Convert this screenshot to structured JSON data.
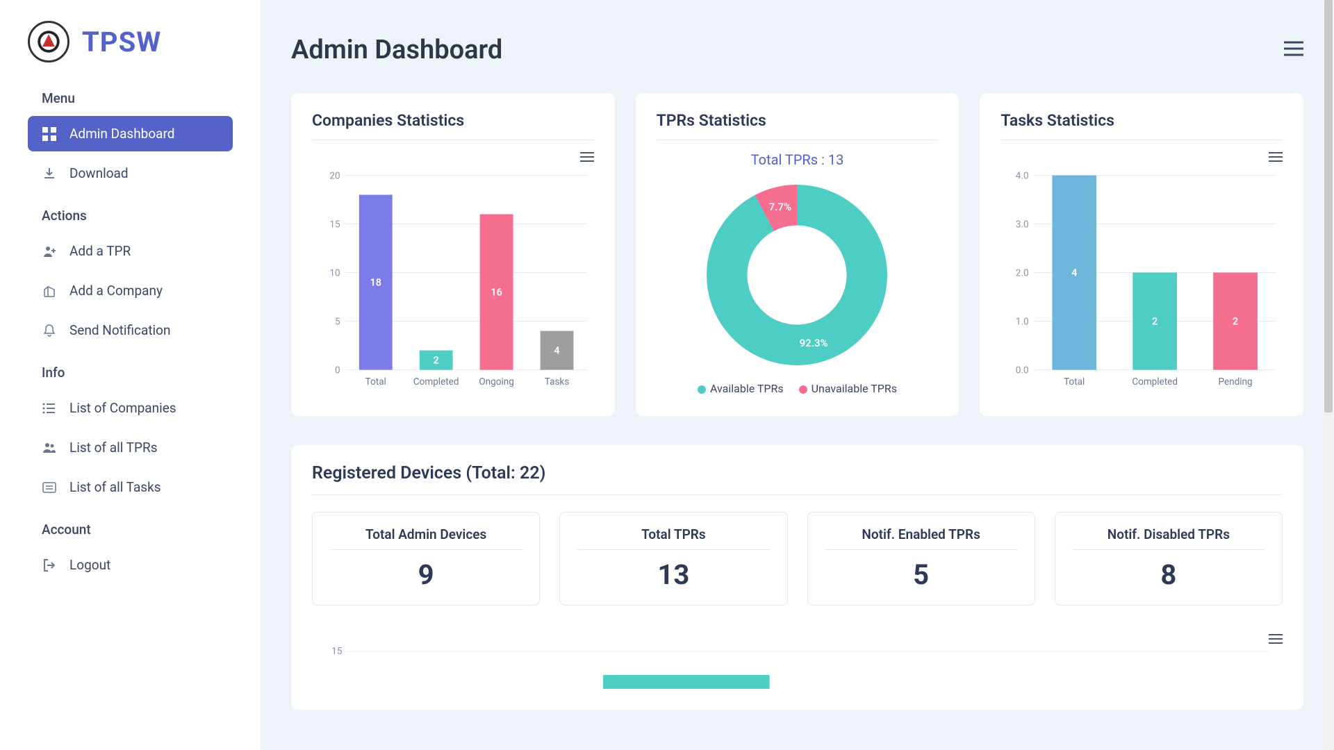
{
  "brand": {
    "name": "TPSW"
  },
  "sidebar": {
    "sections": [
      {
        "label": "Menu",
        "items": [
          {
            "label": "Admin Dashboard",
            "icon": "grid-icon",
            "active": true
          },
          {
            "label": "Download",
            "icon": "download-icon",
            "active": false
          }
        ]
      },
      {
        "label": "Actions",
        "items": [
          {
            "label": "Add a TPR",
            "icon": "person-plus-icon",
            "active": false
          },
          {
            "label": "Add a Company",
            "icon": "building-icon",
            "active": false
          },
          {
            "label": "Send Notification",
            "icon": "bell-icon",
            "active": false
          }
        ]
      },
      {
        "label": "Info",
        "items": [
          {
            "label": "List of Companies",
            "icon": "list-icon",
            "active": false
          },
          {
            "label": "List of all TPRs",
            "icon": "people-icon",
            "active": false
          },
          {
            "label": "List of all Tasks",
            "icon": "card-list-icon",
            "active": false
          }
        ]
      },
      {
        "label": "Account",
        "items": [
          {
            "label": "Logout",
            "icon": "logout-icon",
            "active": false
          }
        ]
      }
    ]
  },
  "header": {
    "title": "Admin Dashboard"
  },
  "companies_chart": {
    "title": "Companies Statistics",
    "type": "bar",
    "categories": [
      "Total",
      "Completed",
      "Ongoing",
      "Tasks"
    ],
    "values": [
      18,
      2,
      16,
      4
    ],
    "bar_colors": [
      "#7c7ce8",
      "#4ecdc4",
      "#f56d8f",
      "#9e9e9e"
    ],
    "ylim": [
      0,
      20
    ],
    "ytick_step": 5,
    "grid_color": "#e5e9f0",
    "axis_color": "#cbd5e0",
    "label_fontsize": 14,
    "value_label_color": "#ffffff",
    "bar_width": 0.55,
    "background_color": "#ffffff"
  },
  "tprs_chart": {
    "title": "TPRs Statistics",
    "type": "donut",
    "center_text": "Total TPRs : 13",
    "slices": [
      {
        "label": "Available TPRs",
        "pct": 92.3,
        "color": "#4ecdc4"
      },
      {
        "label": "Unavailable TPRs",
        "pct": 7.7,
        "color": "#f56d8f"
      }
    ],
    "inner_radius_ratio": 0.55,
    "background_color": "#ffffff",
    "slice_label_color": "#ffffff",
    "slice_label_fontsize": 15
  },
  "tasks_chart": {
    "title": "Tasks Statistics",
    "type": "bar",
    "categories": [
      "Total",
      "Completed",
      "Pending"
    ],
    "values": [
      4,
      2,
      2
    ],
    "bar_colors": [
      "#6cb7d9",
      "#4ecdc4",
      "#f56d8f"
    ],
    "ylim": [
      0,
      4
    ],
    "ytick_step": 1,
    "tick_decimals": 1,
    "grid_color": "#e5e9f0",
    "axis_color": "#cbd5e0",
    "label_fontsize": 14,
    "value_label_color": "#ffffff",
    "bar_width": 0.55,
    "background_color": "#ffffff"
  },
  "devices": {
    "title": "Registered Devices (Total: 22)",
    "stats": [
      {
        "label": "Total Admin Devices",
        "value": 9
      },
      {
        "label": "Total TPRs",
        "value": 13
      },
      {
        "label": "Notif. Enabled TPRs",
        "value": 5
      },
      {
        "label": "Notif. Disabled TPRs",
        "value": 8
      }
    ],
    "bottom_chart_ytick": 15
  },
  "colors": {
    "accent": "#5562c7",
    "text_dark": "#2d3a57",
    "page_bg": "#eef2f9",
    "card_bg": "#ffffff"
  }
}
